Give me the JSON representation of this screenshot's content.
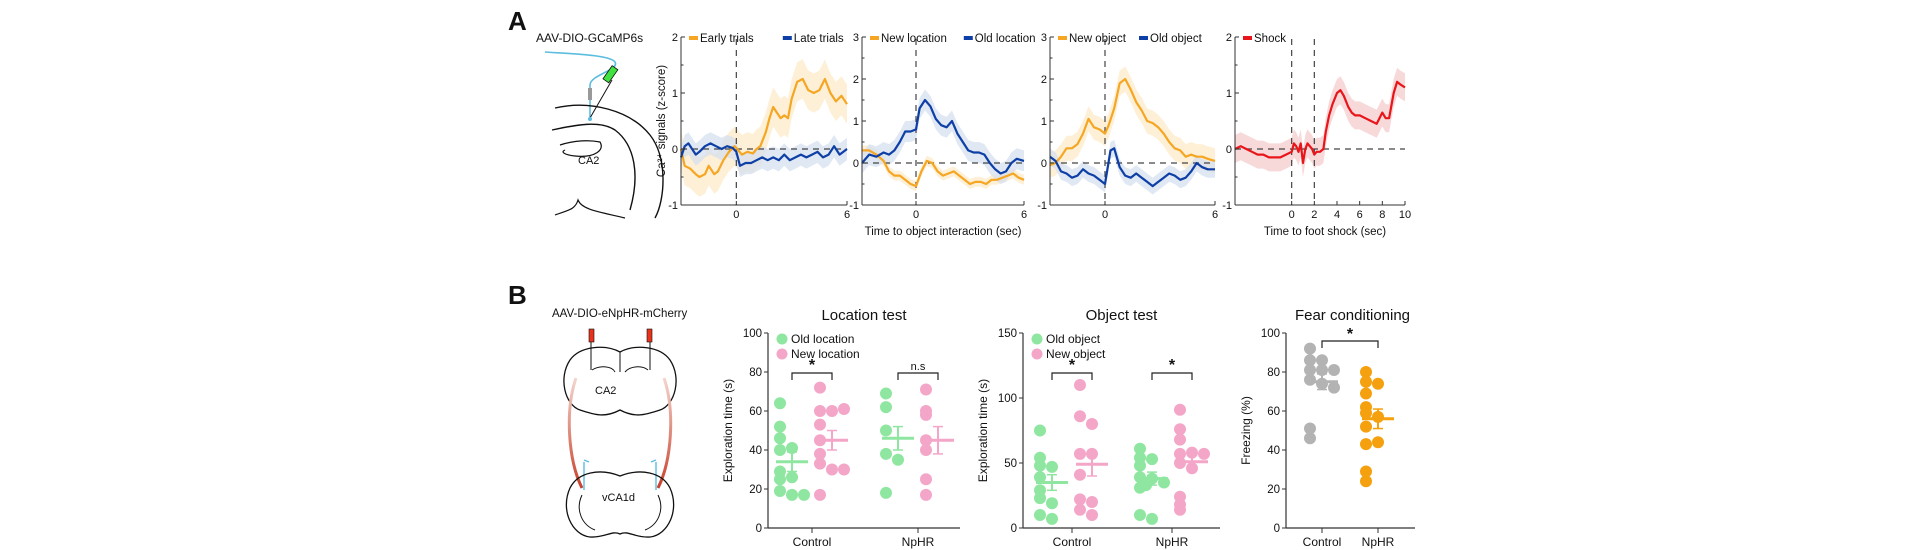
{
  "panels": {
    "A": {
      "label": "A",
      "virus_label": "AAV-DIO-GCaMP6s",
      "region_label": "CA2",
      "colors": {
        "orange": "#f5a623",
        "blue": "#0d3fa6",
        "red": "#e8151b",
        "orange_shade": "#fdebc8",
        "blue_shade": "#d5e0ef",
        "red_shade": "#f6cccc"
      }
    },
    "B": {
      "label": "B",
      "virus_label": "AAV-DIO-eNpHR-mCherry",
      "region_top_label": "CA2",
      "region_bottom_label": "vCA1d",
      "colors": {
        "green": "#8fe6a0",
        "pink": "#f4a6c8",
        "gray": "#b3b3b3",
        "orange": "#f5a00e"
      }
    }
  },
  "chart_data": [
    {
      "id": "early-late",
      "type": "line",
      "ylabel": "Ca²⁺ signals (z-score)",
      "xlabel": "",
      "xlim": [
        -3,
        6
      ],
      "ylim": [
        -1,
        2
      ],
      "xticks": [
        0,
        6
      ],
      "yticks": [
        -1,
        0,
        1,
        2
      ],
      "vlines": [
        0
      ],
      "hline": 0,
      "series": [
        {
          "name": "Early trials",
          "color": "#f5a623",
          "shade": "#fdebc8",
          "x": [
            -3,
            -2.8,
            -2.5,
            -2.2,
            -2,
            -1.7,
            -1.5,
            -1.2,
            -1,
            -0.7,
            -0.4,
            -0.1,
            0,
            0.3,
            0.6,
            0.9,
            1.1,
            1.3,
            1.6,
            1.8,
            2,
            2.2,
            2.4,
            2.6,
            2.8,
            3,
            3.3,
            3.6,
            3.9,
            4.2,
            4.5,
            4.8,
            5.1,
            5.4,
            5.7,
            6
          ],
          "y": [
            0,
            -0.3,
            -0.35,
            -0.45,
            -0.5,
            -0.45,
            -0.3,
            -0.45,
            -0.4,
            -0.2,
            -0.05,
            0.05,
            0.02,
            -0.1,
            -0.05,
            -0.08,
            0,
            0.05,
            0.3,
            0.55,
            0.75,
            0.65,
            0.55,
            0.6,
            0.55,
            0.9,
            1.2,
            1.25,
            1.05,
            1.0,
            1.05,
            1.25,
            1.0,
            0.85,
            0.95,
            0.8
          ],
          "err": 0.35
        },
        {
          "name": "Late trials",
          "color": "#0d3fa6",
          "shade": "#d5e0ef",
          "x": [
            -3,
            -2.8,
            -2.6,
            -2.4,
            -2.2,
            -2,
            -1.7,
            -1.4,
            -1.1,
            -0.8,
            -0.5,
            -0.2,
            0,
            0.2,
            0.5,
            0.8,
            1.1,
            1.4,
            1.7,
            2,
            2.3,
            2.6,
            2.9,
            3.2,
            3.5,
            3.8,
            4.1,
            4.4,
            4.7,
            5,
            5.3,
            5.6,
            6
          ],
          "y": [
            -0.15,
            0.05,
            0.1,
            0.0,
            -0.1,
            -0.05,
            0.05,
            0.1,
            0.05,
            0.0,
            0.05,
            0.02,
            -0.05,
            -0.3,
            -0.25,
            -0.25,
            -0.2,
            -0.15,
            -0.2,
            -0.15,
            -0.2,
            -0.1,
            -0.2,
            -0.15,
            -0.1,
            -0.15,
            -0.1,
            -0.05,
            -0.15,
            -0.1,
            0.05,
            -0.1,
            0.0
          ],
          "err": 0.2
        }
      ]
    },
    {
      "id": "location",
      "type": "line",
      "ylabel": "",
      "xlabel": "Time to object interaction (sec)",
      "xlim": [
        -3,
        6
      ],
      "ylim": [
        -1,
        3
      ],
      "xticks": [
        0,
        6
      ],
      "yticks": [
        -1,
        0,
        1,
        2,
        3
      ],
      "vlines": [
        0
      ],
      "hline": 0,
      "series": [
        {
          "name": "New location",
          "color": "#f5a623",
          "shade": "#fdebc8",
          "x": [
            -3,
            -2.6,
            -2.2,
            -1.8,
            -1.5,
            -1.2,
            -0.9,
            -0.6,
            -0.3,
            0,
            0.3,
            0.6,
            0.9,
            1.2,
            1.5,
            1.8,
            2.1,
            2.4,
            2.7,
            3,
            3.3,
            3.6,
            3.9,
            4.2,
            4.5,
            4.8,
            5.1,
            5.4,
            5.7,
            6
          ],
          "y": [
            0.3,
            0.3,
            0.2,
            0.05,
            -0.2,
            -0.3,
            -0.3,
            -0.4,
            -0.5,
            -0.55,
            -0.2,
            0.05,
            0.0,
            -0.2,
            -0.3,
            -0.25,
            -0.2,
            -0.3,
            -0.4,
            -0.5,
            -0.45,
            -0.45,
            -0.5,
            -0.4,
            -0.4,
            -0.35,
            -0.3,
            -0.25,
            -0.35,
            -0.4
          ],
          "err": 0.12
        },
        {
          "name": "Old location",
          "color": "#0d3fa6",
          "shade": "#d5e0ef",
          "x": [
            -3,
            -2.6,
            -2.2,
            -1.8,
            -1.5,
            -1.2,
            -0.9,
            -0.6,
            -0.3,
            0,
            0.2,
            0.5,
            0.8,
            1.1,
            1.4,
            1.7,
            2,
            2.3,
            2.6,
            2.9,
            3.2,
            3.5,
            3.8,
            4.1,
            4.4,
            4.7,
            5,
            5.3,
            5.6,
            6
          ],
          "y": [
            0.0,
            0.2,
            0.15,
            0.25,
            0.2,
            0.3,
            0.5,
            0.75,
            0.75,
            0.8,
            1.3,
            1.5,
            1.35,
            1.05,
            0.9,
            0.85,
            1.0,
            0.7,
            0.5,
            0.3,
            0.25,
            0.25,
            0.2,
            0.0,
            -0.15,
            -0.25,
            -0.2,
            0.0,
            0.1,
            0.05
          ],
          "err": 0.25
        }
      ]
    },
    {
      "id": "object",
      "type": "line",
      "ylabel": "",
      "xlabel": "",
      "xlim": [
        -3,
        6
      ],
      "ylim": [
        -1,
        3
      ],
      "xticks": [
        0,
        6
      ],
      "yticks": [
        -1,
        0,
        1,
        2,
        3
      ],
      "vlines": [
        0
      ],
      "hline": 0,
      "series": [
        {
          "name": "New object",
          "color": "#f5a623",
          "shade": "#fdebc8",
          "x": [
            -3,
            -2.7,
            -2.4,
            -2.1,
            -1.8,
            -1.5,
            -1.2,
            -0.9,
            -0.6,
            -0.3,
            0,
            0.2,
            0.5,
            0.8,
            1.1,
            1.4,
            1.7,
            2,
            2.3,
            2.6,
            2.9,
            3.2,
            3.5,
            3.8,
            4.1,
            4.4,
            4.7,
            5,
            5.3,
            5.6,
            6
          ],
          "y": [
            -0.05,
            0.0,
            0.15,
            0.35,
            0.35,
            0.45,
            0.7,
            1.05,
            0.85,
            0.8,
            0.7,
            0.9,
            1.3,
            1.9,
            2.0,
            1.75,
            1.45,
            1.25,
            1.0,
            0.95,
            0.85,
            0.7,
            0.5,
            0.35,
            0.3,
            0.15,
            0.2,
            0.15,
            0.15,
            0.1,
            0.05
          ],
          "err": 0.3
        },
        {
          "name": "Old object",
          "color": "#0d3fa6",
          "shade": "#d5e0ef",
          "x": [
            -3,
            -2.7,
            -2.4,
            -2.1,
            -1.8,
            -1.5,
            -1.2,
            -0.9,
            -0.6,
            -0.3,
            0,
            0.3,
            0.5,
            0.8,
            1.1,
            1.4,
            1.7,
            2,
            2.3,
            2.6,
            2.9,
            3.2,
            3.5,
            3.8,
            4.1,
            4.4,
            4.7,
            5,
            5.3,
            5.6,
            6
          ],
          "y": [
            0.15,
            0.05,
            -0.2,
            -0.25,
            -0.35,
            -0.3,
            -0.15,
            -0.25,
            -0.3,
            -0.4,
            -0.5,
            0.3,
            0.35,
            -0.1,
            -0.3,
            -0.35,
            -0.25,
            -0.35,
            -0.45,
            -0.55,
            -0.45,
            -0.35,
            -0.25,
            -0.3,
            -0.4,
            -0.35,
            -0.2,
            0.0,
            -0.1,
            -0.15,
            -0.15
          ],
          "err": 0.2
        }
      ]
    },
    {
      "id": "shock",
      "type": "line",
      "ylabel": "",
      "xlabel": "Time to foot shock (sec)",
      "xlim": [
        -5,
        10
      ],
      "ylim": [
        -1,
        2
      ],
      "xticks": [
        0,
        2,
        4,
        6,
        8,
        10
      ],
      "yticks": [
        -1,
        0,
        1,
        2
      ],
      "vlines": [
        0,
        2
      ],
      "hline": 0,
      "series": [
        {
          "name": "Shock",
          "color": "#e8151b",
          "shade": "#f6cccc",
          "x": [
            -5,
            -4.5,
            -4,
            -3.5,
            -3,
            -2.5,
            -2,
            -1.5,
            -1,
            -0.5,
            0,
            0.2,
            0.4,
            0.6,
            0.8,
            1,
            1.2,
            1.4,
            1.6,
            1.8,
            2,
            2.2,
            2.5,
            2.8,
            3,
            3.3,
            3.6,
            4,
            4.3,
            4.6,
            5,
            5.3,
            5.6,
            6,
            6.5,
            7,
            7.5,
            8,
            8.3,
            8.6,
            9,
            9.3,
            9.6,
            10
          ],
          "y": [
            0,
            0.05,
            0.0,
            -0.05,
            -0.1,
            -0.1,
            -0.15,
            -0.15,
            -0.15,
            -0.1,
            -0.05,
            0.1,
            0.05,
            -0.05,
            0.1,
            -0.25,
            0.0,
            0.1,
            0.05,
            0.0,
            -0.1,
            -0.05,
            -0.05,
            0.0,
            0.3,
            0.6,
            0.8,
            1.0,
            1.05,
            0.95,
            0.75,
            0.65,
            0.6,
            0.6,
            0.55,
            0.5,
            0.45,
            0.65,
            0.55,
            0.55,
            1.0,
            1.2,
            1.15,
            1.1
          ],
          "err": 0.25
        }
      ]
    },
    {
      "id": "location-test",
      "type": "scatter",
      "title": "Location test",
      "ylabel": "Exploration time (s)",
      "categories": [
        "Control",
        "NpHR"
      ],
      "ylim": [
        0,
        100
      ],
      "yticks": [
        0,
        20,
        40,
        60,
        80,
        100
      ],
      "series": [
        {
          "name": "Old location",
          "color": "#8fe6a0",
          "groups": [
            [
              64,
              52,
              46,
              41,
              40,
              29,
              25,
              26,
              19,
              17,
              17
            ],
            [
              69,
              62,
              50,
              38,
              35,
              18
            ]
          ],
          "means": [
            34,
            46
          ],
          "sems": [
            5,
            6
          ]
        },
        {
          "name": "New location",
          "color": "#f4a6c8",
          "groups": [
            [
              72,
              60,
              60,
              61,
              53,
              45,
              38,
              33,
              30,
              30,
              17
            ],
            [
              71,
              58,
              60,
              45,
              40,
              25,
              17
            ]
          ],
          "means": [
            45,
            45
          ],
          "sems": [
            5,
            7
          ]
        }
      ],
      "significance": [
        "*",
        "n.s"
      ]
    },
    {
      "id": "object-test",
      "type": "scatter",
      "title": "Object test",
      "ylabel": "Exploration time (s)",
      "categories": [
        "Control",
        "NpHR"
      ],
      "ylim": [
        0,
        150
      ],
      "yticks": [
        0,
        50,
        100,
        150
      ],
      "series": [
        {
          "name": "Old object",
          "color": "#8fe6a0",
          "groups": [
            [
              75,
              54,
              48,
              47,
              39,
              29,
              23,
              19,
              10,
              7
            ],
            [
              61,
              54,
              53,
              48,
              39,
              38,
              35,
              33,
              31,
              10,
              7
            ]
          ],
          "means": [
            35,
            38
          ],
          "sems": [
            6,
            5
          ]
        },
        {
          "name": "New object",
          "color": "#f4a6c8",
          "groups": [
            [
              110,
              86,
              80,
              57,
              57,
              41,
              22,
              20,
              14,
              10
            ],
            [
              91,
              76,
              68,
              57,
              58,
              57,
              50,
              46,
              24,
              18,
              14
            ]
          ],
          "means": [
            49,
            51
          ],
          "sems": [
            9,
            6
          ]
        }
      ],
      "significance": [
        "*",
        "*"
      ]
    },
    {
      "id": "fear-conditioning",
      "type": "scatter",
      "title": "Fear conditioning",
      "ylabel": "Freezing (%)",
      "categories": [
        "Control",
        "NpHR"
      ],
      "ylim": [
        0,
        100
      ],
      "yticks": [
        0,
        20,
        40,
        60,
        80,
        100
      ],
      "series": [
        {
          "name": "Control",
          "color": "#b3b3b3",
          "groups": [
            [
              92,
              86,
              86,
              81,
              81,
              81,
              76,
              74,
              72,
              51,
              46
            ]
          ],
          "means": [
            75
          ],
          "sems": [
            4
          ]
        },
        {
          "name": "NpHR",
          "color": "#f5a00e",
          "groups": [
            [
              80,
              75,
              74,
              69,
              62,
              59,
              57,
              52,
              43,
              44,
              29,
              24
            ]
          ],
          "means": [
            56
          ],
          "sems": [
            5
          ]
        }
      ],
      "significance": [
        "*"
      ]
    }
  ]
}
